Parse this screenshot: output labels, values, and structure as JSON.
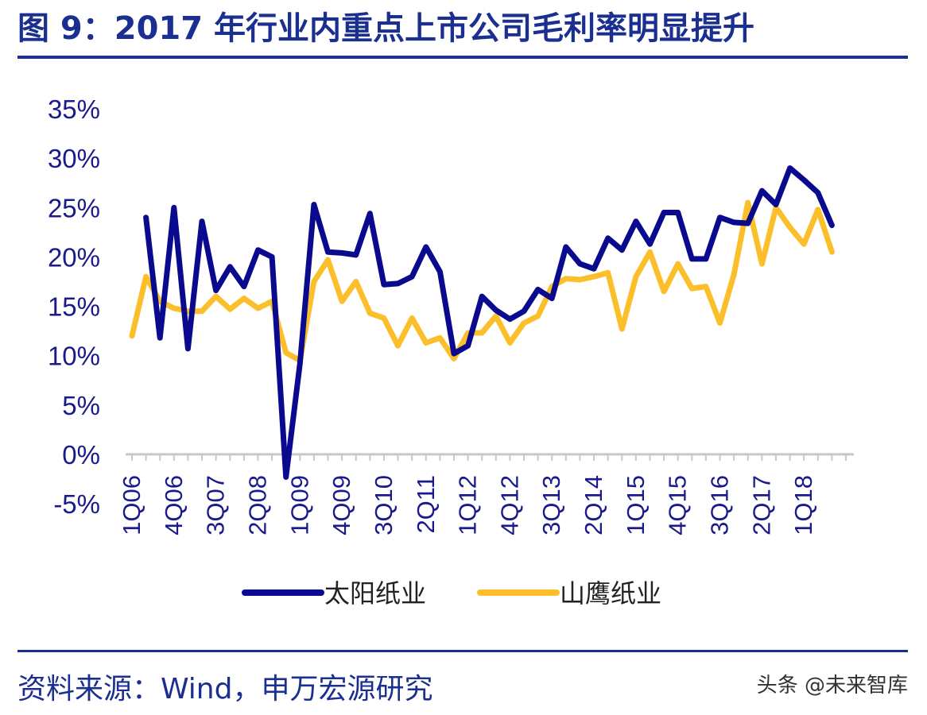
{
  "header": {
    "title": "图 9：2017 年行业内重点上市公司毛利率明显提升"
  },
  "footer": {
    "source": "资料来源：Wind，申万宏源研究",
    "watermark": "头条 @未来智库"
  },
  "colors": {
    "title": "#1a2f8f",
    "axis_text": "#1a1a8c",
    "series_1": "#0a0a8e",
    "series_2": "#fcbf2c",
    "axis": "#c8c8c8"
  },
  "chart_data": {
    "type": "line",
    "title": "",
    "xlabel": "",
    "ylabel": "",
    "ylim": [
      -0.05,
      0.35
    ],
    "yticks": [
      "35%",
      "30%",
      "25%",
      "20%",
      "15%",
      "10%",
      "5%",
      "0%",
      "-5%"
    ],
    "ytick_values": [
      0.35,
      0.3,
      0.25,
      0.2,
      0.15,
      0.1,
      0.05,
      0.0,
      -0.05
    ],
    "grid": false,
    "legend": "bottom",
    "x": [
      "1Q06",
      "2Q06",
      "3Q06",
      "4Q06",
      "1Q07",
      "2Q07",
      "3Q07",
      "4Q07",
      "1Q08",
      "2Q08",
      "3Q08",
      "4Q08",
      "1Q09",
      "2Q09",
      "3Q09",
      "4Q09",
      "1Q10",
      "2Q10",
      "3Q10",
      "4Q10",
      "1Q11",
      "2Q11",
      "3Q11",
      "4Q11",
      "1Q12",
      "2Q12",
      "3Q12",
      "4Q12",
      "1Q13",
      "2Q13",
      "3Q13",
      "4Q13",
      "1Q14",
      "2Q14",
      "3Q14",
      "4Q14",
      "1Q15",
      "2Q15",
      "3Q15",
      "4Q15",
      "1Q16",
      "2Q16",
      "3Q16",
      "4Q16",
      "1Q17",
      "2Q17",
      "3Q17",
      "4Q17",
      "1Q18",
      "2Q18",
      "3Q18",
      "4Q18"
    ],
    "xtick_labels": [
      "1Q06",
      "4Q06",
      "3Q07",
      "2Q08",
      "1Q09",
      "4Q09",
      "3Q10",
      "2Q11",
      "1Q12",
      "4Q12",
      "3Q13",
      "2Q14",
      "1Q15",
      "4Q15",
      "3Q16",
      "2Q17",
      "1Q18"
    ],
    "series": [
      {
        "name": "太阳纸业",
        "values": [
          null,
          0.24,
          0.118,
          0.25,
          0.107,
          0.236,
          0.166,
          0.19,
          0.17,
          0.207,
          0.2,
          -0.023,
          0.092,
          0.253,
          0.205,
          0.204,
          0.202,
          0.244,
          0.172,
          0.173,
          0.18,
          0.21,
          0.185,
          0.102,
          0.11,
          0.16,
          0.146,
          0.137,
          0.145,
          0.167,
          0.158,
          0.21,
          0.193,
          0.188,
          0.219,
          0.207,
          0.236,
          0.213,
          0.245,
          0.245,
          0.198,
          0.198,
          0.24,
          0.235,
          0.234,
          0.267,
          0.253,
          0.29,
          0.278,
          0.265,
          0.232,
          null
        ]
      },
      {
        "name": "山鹰纸业",
        "values": [
          0.12,
          0.18,
          0.155,
          0.148,
          0.145,
          0.145,
          0.16,
          0.147,
          0.158,
          0.148,
          0.155,
          0.103,
          0.095,
          0.175,
          0.197,
          0.155,
          0.175,
          0.143,
          0.138,
          0.11,
          0.138,
          0.113,
          0.118,
          0.097,
          0.123,
          0.123,
          0.14,
          0.113,
          0.133,
          0.14,
          0.17,
          0.178,
          0.177,
          0.18,
          0.184,
          0.127,
          0.18,
          0.205,
          0.165,
          0.193,
          0.168,
          0.17,
          0.133,
          0.182,
          0.255,
          0.193,
          0.25,
          0.23,
          0.213,
          0.248,
          0.205,
          null
        ]
      }
    ]
  }
}
